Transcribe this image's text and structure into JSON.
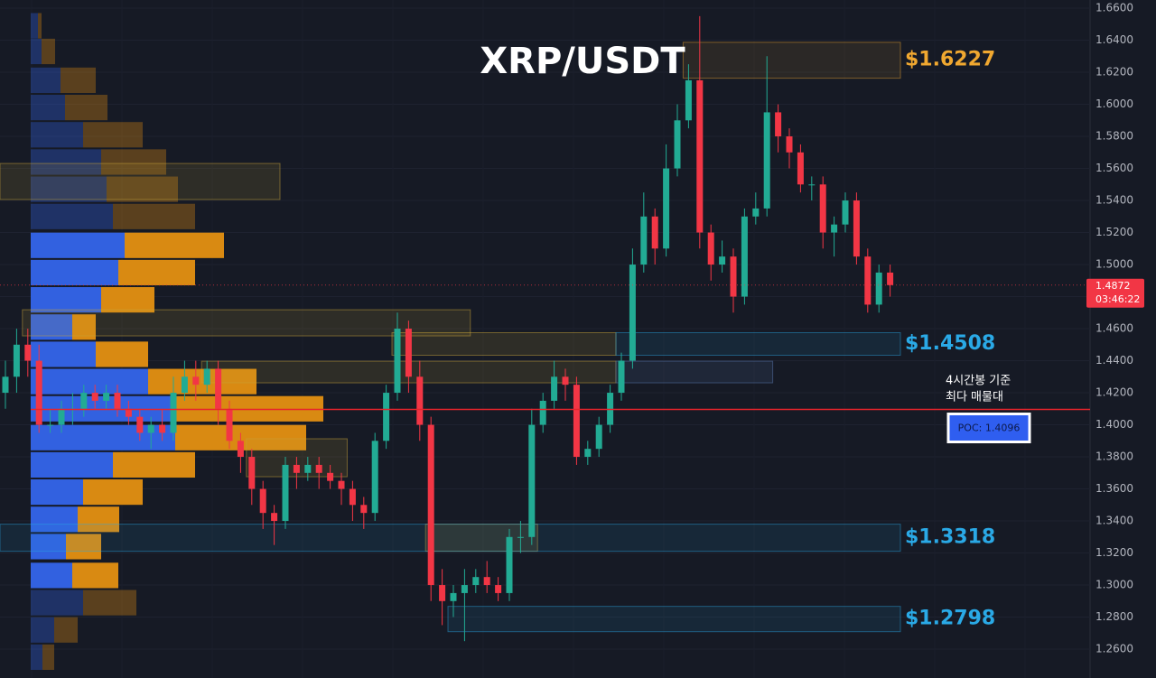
{
  "chart_data": {
    "type": "candlestick",
    "title": "XRP/USDT",
    "ylim": [
      1.242,
      1.6651
    ],
    "yticks": [
      {
        "value": 1.66,
        "label": "1.6600"
      },
      {
        "value": 1.64,
        "label": "1.6400"
      },
      {
        "value": 1.62,
        "label": "1.6200"
      },
      {
        "value": 1.6,
        "label": "1.6000"
      },
      {
        "value": 1.58,
        "label": "1.5800"
      },
      {
        "value": 1.56,
        "label": "1.5600"
      },
      {
        "value": 1.54,
        "label": "1.5400"
      },
      {
        "value": 1.52,
        "label": "1.5200"
      },
      {
        "value": 1.5,
        "label": "1.5000"
      },
      {
        "value": 1.48,
        "label": "1.4800"
      },
      {
        "value": 1.46,
        "label": "1.4600"
      },
      {
        "value": 1.44,
        "label": "1.4400"
      },
      {
        "value": 1.42,
        "label": "1.4200"
      },
      {
        "value": 1.4,
        "label": "1.4000"
      },
      {
        "value": 1.38,
        "label": "1.3800"
      },
      {
        "value": 1.36,
        "label": "1.3600"
      },
      {
        "value": 1.34,
        "label": "1.3400"
      },
      {
        "value": 1.32,
        "label": "1.3200"
      },
      {
        "value": 1.3,
        "label": "1.3000"
      },
      {
        "value": 1.28,
        "label": "1.2800"
      },
      {
        "value": 1.26,
        "label": "1.2600"
      }
    ],
    "grid": true,
    "up_color": "#22ab94",
    "down_color": "#f23645",
    "open": [
      1.42,
      1.43,
      1.45,
      1.44,
      1.4,
      1.4,
      1.41,
      1.41,
      1.42,
      1.415,
      1.42,
      1.41,
      1.405,
      1.395,
      1.4,
      1.395,
      1.42,
      1.43,
      1.425,
      1.435,
      1.41,
      1.39,
      1.38,
      1.36,
      1.345,
      1.34,
      1.375,
      1.37,
      1.375,
      1.37,
      1.365,
      1.36,
      1.35,
      1.345,
      1.39,
      1.42,
      1.46,
      1.43,
      1.4,
      1.3,
      1.29,
      1.295,
      1.3,
      1.305,
      1.3,
      1.295,
      1.33,
      1.33,
      1.4,
      1.415,
      1.43,
      1.425,
      1.38,
      1.385,
      1.4,
      1.42,
      1.44,
      1.5,
      1.53,
      1.51,
      1.56,
      1.59,
      1.615,
      1.52,
      1.5,
      1.505,
      1.48,
      1.53,
      1.535,
      1.595,
      1.58,
      1.57,
      1.55,
      1.55,
      1.52,
      1.525,
      1.54,
      1.505,
      1.475,
      1.495
    ],
    "high": [
      1.44,
      1.46,
      1.46,
      1.45,
      1.41,
      1.415,
      1.42,
      1.425,
      1.425,
      1.425,
      1.425,
      1.415,
      1.41,
      1.405,
      1.41,
      1.43,
      1.44,
      1.44,
      1.44,
      1.44,
      1.415,
      1.395,
      1.385,
      1.365,
      1.35,
      1.38,
      1.38,
      1.38,
      1.38,
      1.375,
      1.37,
      1.365,
      1.355,
      1.395,
      1.425,
      1.47,
      1.465,
      1.44,
      1.405,
      1.31,
      1.3,
      1.31,
      1.31,
      1.315,
      1.305,
      1.335,
      1.34,
      1.41,
      1.42,
      1.44,
      1.435,
      1.43,
      1.39,
      1.405,
      1.425,
      1.445,
      1.51,
      1.545,
      1.535,
      1.575,
      1.6,
      1.625,
      1.655,
      1.525,
      1.515,
      1.51,
      1.535,
      1.545,
      1.63,
      1.6,
      1.585,
      1.575,
      1.555,
      1.555,
      1.53,
      1.545,
      1.545,
      1.51,
      1.5,
      1.5
    ],
    "low": [
      1.41,
      1.42,
      1.43,
      1.395,
      1.395,
      1.395,
      1.4,
      1.405,
      1.41,
      1.41,
      1.405,
      1.4,
      1.39,
      1.385,
      1.39,
      1.39,
      1.415,
      1.415,
      1.42,
      1.4,
      1.385,
      1.37,
      1.35,
      1.335,
      1.325,
      1.335,
      1.36,
      1.365,
      1.36,
      1.36,
      1.35,
      1.34,
      1.335,
      1.34,
      1.385,
      1.415,
      1.42,
      1.39,
      1.29,
      1.275,
      1.28,
      1.265,
      1.295,
      1.295,
      1.29,
      1.29,
      1.32,
      1.325,
      1.395,
      1.41,
      1.415,
      1.375,
      1.375,
      1.38,
      1.395,
      1.415,
      1.435,
      1.495,
      1.5,
      1.505,
      1.555,
      1.585,
      1.51,
      1.49,
      1.495,
      1.47,
      1.475,
      1.525,
      1.53,
      1.57,
      1.56,
      1.545,
      1.54,
      1.51,
      1.505,
      1.52,
      1.5,
      1.47,
      1.47,
      1.48
    ],
    "close": [
      1.43,
      1.45,
      1.44,
      1.4,
      1.4,
      1.41,
      1.41,
      1.42,
      1.415,
      1.42,
      1.41,
      1.405,
      1.395,
      1.4,
      1.395,
      1.42,
      1.43,
      1.425,
      1.435,
      1.41,
      1.39,
      1.38,
      1.36,
      1.345,
      1.34,
      1.375,
      1.37,
      1.375,
      1.37,
      1.365,
      1.36,
      1.35,
      1.345,
      1.39,
      1.42,
      1.46,
      1.43,
      1.4,
      1.3,
      1.29,
      1.295,
      1.3,
      1.305,
      1.3,
      1.295,
      1.33,
      1.33,
      1.4,
      1.415,
      1.43,
      1.425,
      1.38,
      1.385,
      1.4,
      1.42,
      1.44,
      1.5,
      1.53,
      1.51,
      1.56,
      1.59,
      1.615,
      1.52,
      1.5,
      1.505,
      1.48,
      1.53,
      1.535,
      1.595,
      1.58,
      1.57,
      1.55,
      1.55,
      1.52,
      1.525,
      1.54,
      1.505,
      1.475,
      1.495,
      1.4872
    ],
    "volume_profile": {
      "buy_color": "#3261e0",
      "sell_color": "#d98a12",
      "value_area": [
        1.29,
        1.52
      ],
      "price": [
        1.649,
        1.633,
        1.615,
        1.598,
        1.581,
        1.564,
        1.547,
        1.53,
        1.512,
        1.495,
        1.478,
        1.461,
        1.444,
        1.427,
        1.41,
        1.392,
        1.375,
        1.358,
        1.341,
        1.324,
        1.306,
        1.289,
        1.272,
        1.255
      ],
      "buy": [
        8,
        12,
        33,
        38,
        58,
        78,
        84,
        91,
        104,
        97,
        78,
        46,
        72,
        130,
        160,
        160,
        91,
        58,
        52,
        39,
        46,
        58,
        26,
        13
      ],
      "sell": [
        4,
        15,
        39,
        47,
        66,
        72,
        79,
        91,
        110,
        85,
        59,
        26,
        58,
        120,
        164,
        145,
        91,
        66,
        46,
        39,
        51,
        59,
        26,
        13
      ]
    },
    "zones": [
      {
        "label": "$1.6227",
        "top": 1.6387,
        "bottom": 1.6163,
        "start": 61,
        "color": "#f0a830"
      },
      {
        "label": "$1.4508",
        "top": 1.4575,
        "bottom": 1.4434,
        "start": 55,
        "color": "#2aa9e6"
      },
      {
        "label": "$1.3318",
        "top": 1.338,
        "bottom": 1.3211,
        "start": 0,
        "color": "#2aa9e6"
      },
      {
        "label": "$1.2798",
        "top": 1.2867,
        "bottom": 1.2709,
        "start": 40,
        "color": "#2aa9e6"
      }
    ],
    "boxes": [
      {
        "top": 1.5631,
        "bottom": 1.5406,
        "start": 0,
        "end": 25,
        "color": "#c8a43a"
      },
      {
        "top": 1.4718,
        "bottom": 1.4555,
        "start": 2,
        "end": 42,
        "color": "#c8a43a"
      },
      {
        "top": 1.4575,
        "bottom": 1.4434,
        "start": 35,
        "end": 55,
        "color": "#c8a43a"
      },
      {
        "top": 1.4397,
        "bottom": 1.4262,
        "start": 18,
        "end": 55,
        "color": "#c8a43a"
      },
      {
        "top": 1.4397,
        "bottom": 1.4262,
        "start": 55,
        "end": 69,
        "color": "#5a7ab0"
      },
      {
        "top": 1.3913,
        "bottom": 1.3676,
        "start": 22,
        "end": 31,
        "color": "#c8a43a"
      },
      {
        "top": 1.338,
        "bottom": 1.3211,
        "start": 38,
        "end": 48,
        "color": "#c8a43a"
      }
    ],
    "poc": {
      "value": 1.4096,
      "label": "POC: 1.4096"
    },
    "annotation": [
      "4시간봉 기준",
      "최다 매물대"
    ],
    "current_price": 1.4872,
    "countdown": "03:46:22"
  }
}
